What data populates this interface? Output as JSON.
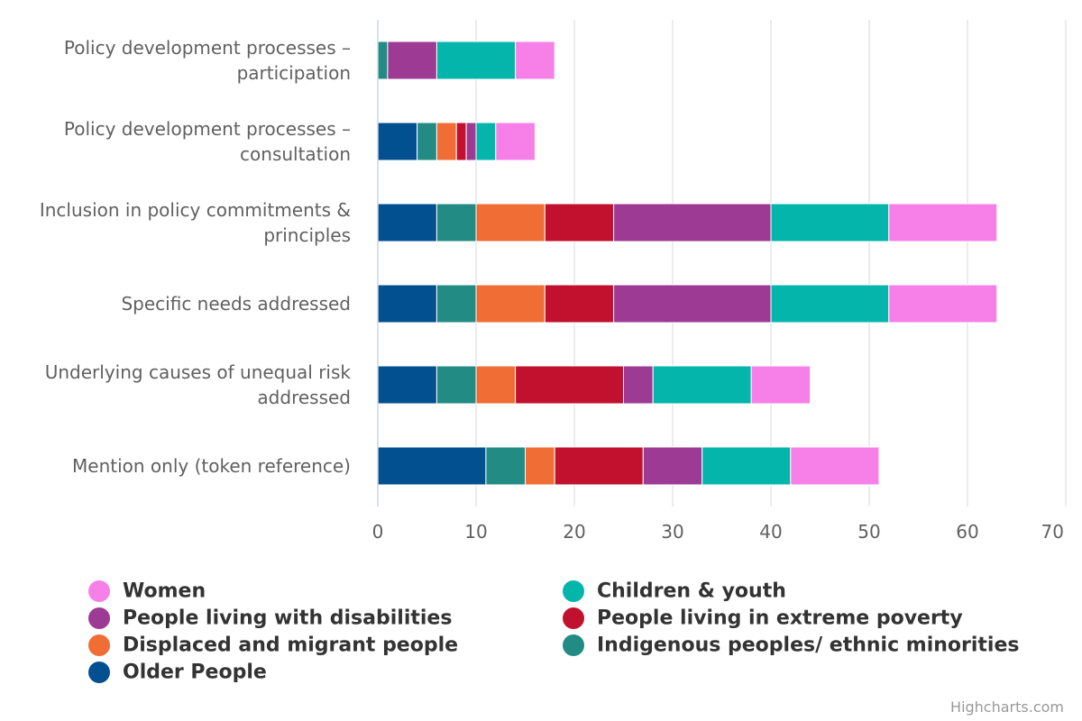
{
  "chart_data": {
    "type": "bar",
    "orientation": "horizontal",
    "stacked": true,
    "categories": [
      [
        "Policy development processes –",
        "participation"
      ],
      [
        "Policy development processes –",
        "consultation"
      ],
      [
        "Inclusion in policy commitments &",
        "principles"
      ],
      [
        "Specific needs addressed"
      ],
      [
        "Underlying causes of unequal risk",
        "addressed"
      ],
      [
        "Mention only (token reference)"
      ]
    ],
    "series": [
      {
        "name": "Older People",
        "color": "#02508f",
        "values": [
          0,
          4,
          6,
          6,
          6,
          11
        ]
      },
      {
        "name": "Indigenous peoples/ ethnic minorities",
        "color": "#228b84",
        "values": [
          1,
          2,
          4,
          4,
          4,
          4
        ]
      },
      {
        "name": "Displaced and migrant people",
        "color": "#f06d35",
        "values": [
          0,
          2,
          7,
          7,
          4,
          3
        ]
      },
      {
        "name": "People living in extreme poverty",
        "color": "#c1112f",
        "values": [
          0,
          1,
          7,
          7,
          11,
          9
        ]
      },
      {
        "name": "People living with disabilities",
        "color": "#9c3a94",
        "values": [
          5,
          1,
          16,
          16,
          3,
          6
        ]
      },
      {
        "name": "Children & youth",
        "color": "#04b5ac",
        "values": [
          8,
          2,
          12,
          12,
          10,
          9
        ]
      },
      {
        "name": "Women",
        "color": "#f780e8",
        "values": [
          4,
          4,
          11,
          11,
          6,
          9
        ]
      }
    ],
    "xlim": [
      0,
      70
    ],
    "x_ticks": [
      0,
      10,
      20,
      30,
      40,
      50,
      60,
      70
    ],
    "grid": true,
    "legend_position": "bottom",
    "legend_order": [
      "Women",
      "Children & youth",
      "People living with disabilities",
      "People living in extreme poverty",
      "Displaced and migrant people",
      "Indigenous peoples/ ethnic minorities",
      "Older People"
    ]
  },
  "credit": "Highcharts.com"
}
